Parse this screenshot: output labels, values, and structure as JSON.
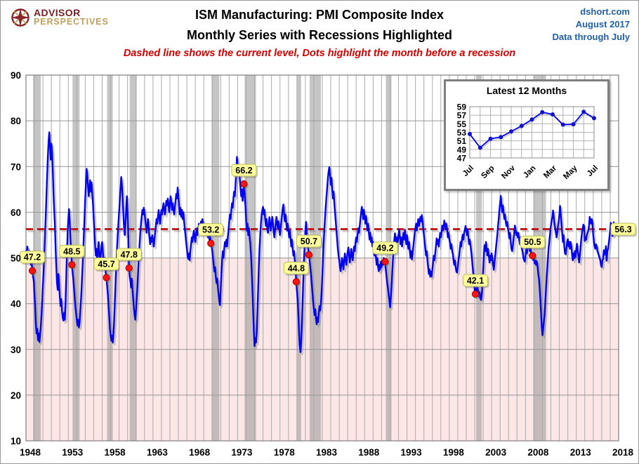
{
  "header": {
    "logo_line1": "ADVISOR",
    "logo_line2": "PERSPECTIVES",
    "title_line1": "ISM Manufacturing: PMI Composite Index",
    "title_line2": "Monthly Series with Recessions Highlighted",
    "subtitle": "Dashed line shows the current level, Dots highlight the month before a recession",
    "source": "dshort.com",
    "edition": "August 2017",
    "data_through": "Data through July"
  },
  "colors": {
    "line": "#0000EE",
    "line_shadow": "rgba(125,125,125,0.40)",
    "dashed": "#C00000",
    "dot_fill": "#FF1414",
    "dot_stroke": "#990000",
    "label_bg": "#FFFF9C",
    "label_border": "#BDBD55",
    "below_50": "#FCE6E6",
    "recession_band": "rgba(150,150,150,0.55)",
    "grid_vertical": "#ABABAB",
    "grid_horizontal": "#969696",
    "frame": "#808080",
    "meta_blue": "#1F5FA6",
    "subtitle_red": "#D40000",
    "logo_maroon": "#7B2125",
    "logo_gold": "#BFA05C",
    "inset_marker": "#1111CC"
  },
  "chart_data": [
    {
      "type": "line",
      "name": "ISM Manufacturing PMI Composite Index, monthly with recessions highlighted",
      "x_axis": {
        "min": 1948,
        "max": 2018,
        "tick_labels": [
          1948,
          1953,
          1958,
          1963,
          1968,
          1973,
          1978,
          1983,
          1988,
          1993,
          1998,
          2003,
          2008,
          2013,
          2018
        ]
      },
      "y_axis": {
        "min": 10,
        "max": 90,
        "ticks": [
          10,
          20,
          30,
          40,
          50,
          60,
          70,
          80,
          90
        ]
      },
      "current_level": 56.3,
      "current_level_label": "56.3",
      "neutral_level": 50,
      "recessions": [
        [
          1948.83,
          1949.75
        ],
        [
          1953.5,
          1954.33
        ],
        [
          1957.58,
          1958.25
        ],
        [
          1960.25,
          1961.08
        ],
        [
          1969.92,
          1970.83
        ],
        [
          1973.83,
          1975.17
        ],
        [
          1980.0,
          1980.5
        ],
        [
          1981.5,
          1982.83
        ],
        [
          1990.5,
          1991.17
        ],
        [
          2001.17,
          2001.83
        ],
        [
          2007.92,
          2009.42
        ]
      ],
      "pre_recession_dots": [
        {
          "x": 1948.75,
          "value": 47.2
        },
        {
          "x": 1953.42,
          "value": 48.5
        },
        {
          "x": 1957.5,
          "value": 45.7
        },
        {
          "x": 1960.17,
          "value": 47.8
        },
        {
          "x": 1969.83,
          "value": 53.2
        },
        {
          "x": 1973.75,
          "value": 66.2
        },
        {
          "x": 1979.92,
          "value": 44.8
        },
        {
          "x": 1981.42,
          "value": 50.7
        },
        {
          "x": 1990.42,
          "value": 49.2
        },
        {
          "x": 2001.08,
          "value": 42.1
        },
        {
          "x": 2007.83,
          "value": 50.5
        }
      ],
      "series": {
        "name": "PMI",
        "start_year": 1948,
        "points_per_year": 12,
        "values": [
          51.7,
          50,
          52.5,
          50.5,
          49,
          51.5,
          50,
          48.5,
          49.5,
          47.2,
          46,
          45,
          42,
          39,
          35.5,
          33.5,
          34.5,
          32,
          33.5,
          31.6,
          33,
          35,
          37.5,
          40.5,
          44,
          47,
          50.5,
          55,
          59,
          63.5,
          68,
          72,
          75.5,
          77.5,
          74.5,
          71.5,
          75,
          73,
          69,
          64,
          60.5,
          57,
          52,
          48,
          44.5,
          43,
          46.5,
          44,
          41.5,
          39.5,
          41,
          38.5,
          37,
          36.3,
          38,
          36.5,
          40,
          45.5,
          51,
          55.5,
          58.5,
          60.7,
          58,
          54.5,
          51.5,
          48.5,
          47,
          45.5,
          43.5,
          41.5,
          39.5,
          38,
          36.5,
          35.2,
          36.5,
          34.8,
          36,
          38.5,
          41,
          44,
          47.5,
          51,
          55,
          59,
          63,
          66.5,
          69.5,
          68,
          65.5,
          63.5,
          65.5,
          67,
          64.5,
          66.5,
          64,
          61.5,
          58.5,
          55.5,
          52.5,
          50.5,
          52,
          49.5,
          51.5,
          53.5,
          51,
          48.5,
          50.5,
          52.5,
          53.5,
          51.5,
          49.5,
          48,
          50,
          47,
          45.7,
          44,
          42,
          39.5,
          37,
          34.5,
          33,
          31.9,
          33,
          31.5,
          33.5,
          36.5,
          40.5,
          44.5,
          48.5,
          52,
          55,
          57.5,
          60,
          62.5,
          65,
          67.7,
          66,
          63,
          59.5,
          56.5,
          55,
          57.5,
          60.5,
          63.5,
          60,
          55,
          47.8,
          46,
          45,
          43.5,
          45.5,
          43,
          41,
          39,
          37.5,
          36.5,
          38.5,
          41,
          44,
          47.5,
          50.5,
          53,
          55.5,
          57.5,
          59,
          60.5,
          59.5,
          61,
          60,
          58.5,
          57,
          55.5,
          57,
          58.5,
          56.5,
          54.5,
          53,
          54.5,
          53.5,
          55,
          54,
          52.5,
          54,
          55.5,
          57,
          58.5,
          57.5,
          59,
          60.5,
          59,
          57.5,
          59,
          60.5,
          59.5,
          61,
          62,
          60.5,
          59.5,
          61,
          62.5,
          61.5,
          63,
          61.5,
          60,
          62,
          63.5,
          62,
          60.5,
          62,
          60.5,
          59.5,
          61,
          62.5,
          64,
          63,
          65.4,
          63.5,
          61.5,
          59.5,
          61,
          59,
          60.5,
          58.5,
          60,
          58,
          56.5,
          55,
          53.5,
          52,
          50.5,
          49.8,
          51,
          49.5,
          51.5,
          53,
          54.5,
          53.5,
          55,
          56,
          54.5,
          53.5,
          55,
          56.5,
          55,
          56,
          57.5,
          55.5,
          56.5,
          58,
          57,
          58.5,
          57.5,
          56,
          57,
          55.5,
          56.5,
          55,
          56,
          54.5,
          55.5,
          54,
          54.8,
          53.2,
          52.5,
          51.5,
          50,
          48.5,
          47,
          48,
          46,
          44.5,
          45.5,
          43.5,
          42,
          40.5,
          39.7,
          43,
          46.5,
          49.5,
          51.5,
          50,
          52,
          53.5,
          52.5,
          54,
          52.5,
          54.5,
          56,
          58,
          59.5,
          58.5,
          60.5,
          62,
          61,
          63,
          64.5,
          63.5,
          66,
          68.5,
          72.1,
          70.5,
          68.5,
          70,
          67.5,
          65.5,
          63.5,
          65,
          62.5,
          64.5,
          66.2,
          64,
          61.5,
          58.5,
          56,
          57.5,
          55,
          56.5,
          54.5,
          53,
          50.5,
          47,
          43,
          38.5,
          34,
          30.7,
          32.5,
          31.5,
          33.5,
          38,
          43,
          48,
          52,
          55,
          57.5,
          59.5,
          60.5,
          61.2,
          59.5,
          60.5,
          58.5,
          57,
          58.5,
          56.5,
          55.5,
          57,
          58.9,
          57.5,
          56,
          57.5,
          59,
          57.5,
          56,
          54.5,
          56,
          57.5,
          59,
          57.5,
          56.5,
          58,
          56.5,
          55,
          56.5,
          58,
          59.5,
          61,
          61.7,
          59.5,
          58,
          59.5,
          57.5,
          56,
          57.5,
          56,
          54.5,
          56,
          54,
          52.5,
          54,
          52,
          50.5,
          51.5,
          49.5,
          48,
          44.8,
          43,
          41,
          38,
          34,
          31,
          29.4,
          31.5,
          35,
          40,
          45,
          49.5,
          53,
          56,
          57.9,
          55.5,
          53.5,
          52,
          50.7,
          49.5,
          48,
          46.5,
          44.5,
          42.5,
          40.5,
          39,
          37.5,
          38.8,
          36.5,
          35.5,
          37,
          36,
          38,
          39.5,
          38.5,
          40,
          42.5,
          46,
          50,
          53.5,
          56.5,
          59,
          61.5,
          63.5,
          65.5,
          67.5,
          69,
          69.9,
          68,
          66,
          67.5,
          65,
          63,
          64.5,
          62,
          60,
          58,
          56,
          54,
          52,
          50.5,
          49.5,
          48,
          47.1,
          48.5,
          50,
          49,
          47.5,
          49.5,
          51,
          49.5,
          48.5,
          50,
          51.5,
          52.3,
          50.5,
          49,
          50.5,
          52,
          50.5,
          49.5,
          51,
          52.5,
          51.5,
          53.3,
          54.5,
          53.5,
          55,
          56.5,
          55.5,
          57,
          58.5,
          60,
          61.2,
          60,
          58.5,
          60.5,
          59,
          57.5,
          59.2,
          57.5,
          56,
          57.5,
          55.5,
          54,
          55.5,
          53.5,
          54.5,
          52.5,
          53.5,
          52,
          50.5,
          52,
          50,
          48.5,
          50,
          48,
          47.1,
          48.5,
          47.5,
          49.2,
          48,
          49.5,
          48.5,
          50,
          49,
          49.2,
          47.5,
          46,
          44.5,
          43.5,
          42,
          40.8,
          39.2,
          41,
          43.5,
          46.5,
          49.5,
          52,
          54,
          55.4,
          54,
          53,
          54.5,
          53.5,
          55,
          56.2,
          54.5,
          53,
          54.5,
          52.5,
          54,
          55.5,
          54,
          56.2,
          54.5,
          53,
          55,
          53.5,
          52,
          53.5,
          51.5,
          50,
          51.5,
          49.7,
          51,
          52.5,
          54,
          55.5,
          56.5,
          57.5,
          56,
          57.5,
          58.5,
          57,
          58,
          59,
          58,
          59.4,
          58,
          56.5,
          55,
          53.5,
          52,
          50.5,
          51.5,
          49.5,
          48,
          46.5,
          47.5,
          45.9,
          47,
          46,
          47.5,
          49,
          50.5,
          49.5,
          51,
          52.5,
          54.3,
          53,
          54,
          52.5,
          54,
          55.5,
          54.5,
          55.5,
          57.1,
          56,
          57,
          58.2,
          57,
          56.3,
          57.5,
          56,
          54.5,
          55.5,
          54,
          53.3,
          52,
          53,
          51.5,
          50.8,
          49.5,
          48.5,
          49.5,
          48,
          47,
          46.8,
          48,
          49.5,
          50.5,
          52,
          53.5,
          52.5,
          54,
          55.1,
          54,
          55.5,
          56.2,
          57,
          56,
          55,
          56.2,
          54.5,
          53,
          54,
          52.8,
          51.5,
          50,
          48.2,
          46.5,
          44.5,
          43,
          42.1,
          43.5,
          42,
          43.5,
          42.5,
          41.5,
          42.5,
          41.2,
          40.8,
          42,
          44.5,
          47.5,
          50.5,
          52.8,
          51.5,
          53.5,
          52,
          50.5,
          52,
          50.5,
          49,
          50.5,
          49.5,
          51,
          50,
          48.5,
          47.4,
          49,
          50.5,
          52,
          53.5,
          55,
          57,
          58.5,
          60.5,
          62,
          63.6,
          61.5,
          60,
          61.5,
          60,
          58.5,
          59.5,
          58,
          57,
          57.9,
          56.5,
          55.5,
          54.3,
          55.5,
          53.5,
          52,
          51.5,
          52.5,
          54,
          55.5,
          57.1,
          56,
          55,
          55.6,
          54.5,
          55.5,
          54,
          53,
          54.5,
          53,
          52,
          51.2,
          50,
          49.5,
          49.2,
          50.5,
          52,
          51,
          52.3,
          53.3,
          52.5,
          51.5,
          52.5,
          51,
          50.9,
          50.5,
          49.5,
          50.3,
          48.8,
          49.5,
          48.5,
          49.3,
          48.2,
          46.5,
          45.5,
          43.5,
          41,
          38,
          35,
          33.1,
          34.5,
          36,
          37.5,
          40,
          43,
          45.5,
          48,
          50.5,
          52.5,
          54,
          55.5,
          57,
          58,
          59,
          60.4,
          59,
          57.5,
          56.5,
          55.5,
          54.5,
          55.5,
          57,
          58,
          59.5,
          61.4,
          59.5,
          57.5,
          55.5,
          53.5,
          55,
          52.5,
          51,
          50.8,
          52,
          53.5,
          54.1,
          52.5,
          53.5,
          52,
          53.5,
          52.5,
          50.7,
          49.5,
          51,
          49.9,
          51.5,
          50.2,
          52,
          53.1,
          51.5,
          50.5,
          49,
          50.5,
          52,
          54,
          55.5,
          56.5,
          57.3,
          57,
          53.7,
          54.5,
          54,
          55,
          55.5,
          56,
          57,
          59,
          58,
          57.5,
          58.5,
          57.5,
          55,
          53.5,
          52.5,
          52,
          53,
          52.5,
          51.5,
          51,
          50.5,
          50,
          49.5,
          48.4,
          48,
          49.5,
          49.7,
          51.7,
          50.7,
          51.1,
          52.6,
          49.4,
          51.5,
          51.9,
          53.2,
          54.5,
          56,
          57.7,
          57.2,
          54.8,
          54.9,
          57.8,
          56.3
        ]
      }
    },
    {
      "type": "line",
      "title": "Latest 12 Months",
      "y_ticks": [
        47,
        49,
        51,
        53,
        55,
        57,
        59
      ],
      "x_tick_labels": [
        "Jul",
        "Sep",
        "Nov",
        "Jan",
        "Mar",
        "May",
        "Jul"
      ],
      "values": [
        52.6,
        49.4,
        51.5,
        51.9,
        53.2,
        54.5,
        56.0,
        57.7,
        57.2,
        54.8,
        54.9,
        57.8,
        56.3
      ]
    }
  ]
}
